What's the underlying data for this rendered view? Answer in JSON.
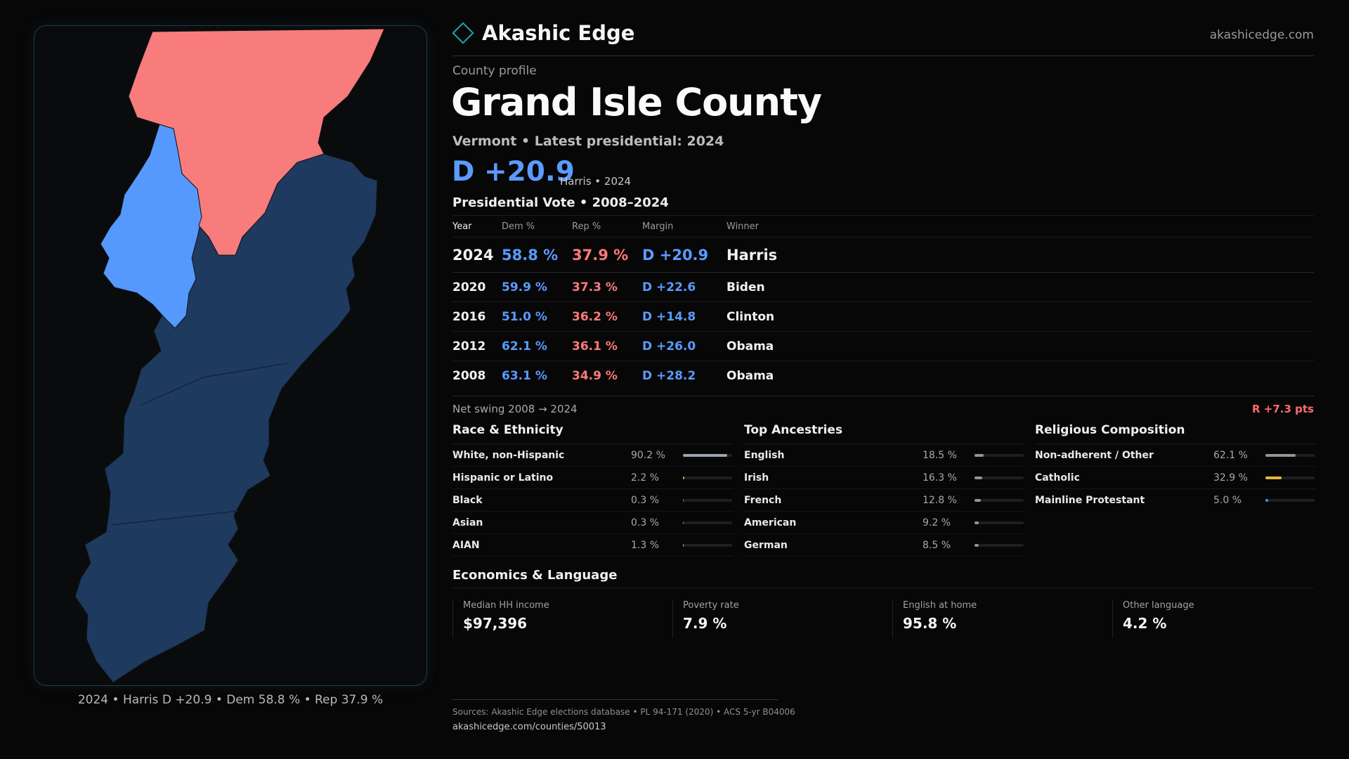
{
  "brand": {
    "name": "Akashic Edge",
    "url": "akashicedge.com"
  },
  "colors": {
    "dem": "#5b9bff",
    "rep": "#ff7a7a",
    "accent": "#1fa6a8",
    "map_dem_dark": "#1e3a5f",
    "map_dem_light": "#5599ff",
    "map_rep": "#f87c7c"
  },
  "profile": {
    "eyebrow": "County profile",
    "title": "Grand Isle County",
    "subtitle": "Vermont • Latest presidential: 2024",
    "margin": "D +20.9",
    "margin_note": "Harris • 2024"
  },
  "map": {
    "caption": "2024 • Harris D +20.9 • Dem 58.8 % • Rep 37.9 %"
  },
  "vote": {
    "section_title": "Presidential Vote • 2008–2024",
    "headers": {
      "year": "Year",
      "dem": "Dem %",
      "rep": "Rep %",
      "margin": "Margin",
      "winner": "Winner"
    },
    "rows": [
      {
        "year": "2024",
        "dem": "58.8 %",
        "rep": "37.9 %",
        "margin": "D +20.9",
        "winner": "Harris"
      },
      {
        "year": "2020",
        "dem": "59.9 %",
        "rep": "37.3 %",
        "margin": "D +22.6",
        "winner": "Biden"
      },
      {
        "year": "2016",
        "dem": "51.0 %",
        "rep": "36.2 %",
        "margin": "D +14.8",
        "winner": "Clinton"
      },
      {
        "year": "2012",
        "dem": "62.1 %",
        "rep": "36.1 %",
        "margin": "D +26.0",
        "winner": "Obama"
      },
      {
        "year": "2008",
        "dem": "63.1 %",
        "rep": "34.9 %",
        "margin": "D +28.2",
        "winner": "Obama"
      }
    ],
    "swing_label": "Net swing 2008 → 2024",
    "swing_value": "R +7.3 pts"
  },
  "race": {
    "title": "Race & Ethnicity",
    "rows": [
      {
        "label": "White, non-Hispanic",
        "value": "90.2 %",
        "pct": 90.2,
        "color": "#9aa3ad"
      },
      {
        "label": "Hispanic or Latino",
        "value": "2.2 %",
        "pct": 2.2,
        "color": "#d9a33a"
      },
      {
        "label": "Black",
        "value": "0.3 %",
        "pct": 0.3,
        "color": "#6a6a6a"
      },
      {
        "label": "Asian",
        "value": "0.3 %",
        "pct": 0.3,
        "color": "#6a6a6a"
      },
      {
        "label": "AIAN",
        "value": "1.3 %",
        "pct": 1.3,
        "color": "#d9a33a"
      }
    ]
  },
  "ancestry": {
    "title": "Top Ancestries",
    "rows": [
      {
        "label": "English",
        "value": "18.5 %",
        "pct": 18.5,
        "color": "#8f959c"
      },
      {
        "label": "Irish",
        "value": "16.3 %",
        "pct": 16.3,
        "color": "#8f959c"
      },
      {
        "label": "French",
        "value": "12.8 %",
        "pct": 12.8,
        "color": "#8f959c"
      },
      {
        "label": "American",
        "value": "9.2 %",
        "pct": 9.2,
        "color": "#8f959c"
      },
      {
        "label": "German",
        "value": "8.5 %",
        "pct": 8.5,
        "color": "#8f959c"
      }
    ]
  },
  "religion": {
    "title": "Religious Composition",
    "rows": [
      {
        "label": "Non-adherent / Other",
        "value": "62.1 %",
        "pct": 62.1,
        "color": "#8f959c"
      },
      {
        "label": "Catholic",
        "value": "32.9 %",
        "pct": 32.9,
        "color": "#e8b53a"
      },
      {
        "label": "Mainline Protestant",
        "value": "5.0 %",
        "pct": 5.0,
        "color": "#4a8cff"
      }
    ]
  },
  "economics": {
    "title": "Economics & Language",
    "cards": [
      {
        "label": "Median HH income",
        "value": "$97,396"
      },
      {
        "label": "Poverty rate",
        "value": "7.9 %"
      },
      {
        "label": "English at home",
        "value": "95.8 %"
      },
      {
        "label": "Other language",
        "value": "4.2 %"
      }
    ]
  },
  "footer": {
    "sources": "Sources: Akashic Edge elections database • PL 94-171 (2020) • ACS 5-yr B04006",
    "url": "akashicedge.com/counties/50013"
  }
}
